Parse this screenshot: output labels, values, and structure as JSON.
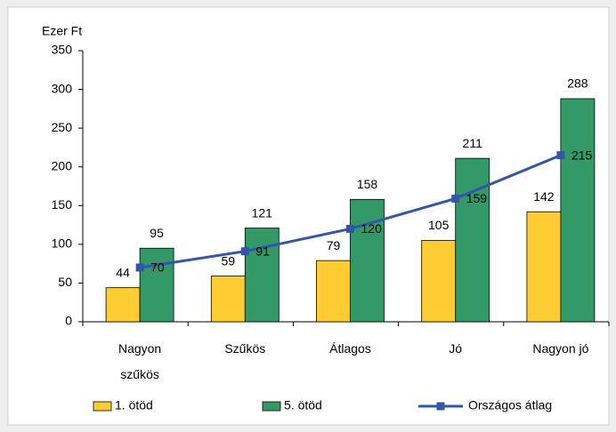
{
  "chart_data": {
    "type": "bar",
    "y_label": "Ezer Ft",
    "categories": [
      "Nagyon szűkös",
      "Szűkös",
      "Átlagos",
      "Jó",
      "Nagyon jó"
    ],
    "series": [
      {
        "name": "1. ötöd",
        "color": "#ffcc33",
        "values": [
          44,
          59,
          79,
          105,
          142
        ]
      },
      {
        "name": "5. ötöd",
        "color": "#339966",
        "values": [
          95,
          121,
          158,
          211,
          288
        ]
      },
      {
        "name": "Országos átlag",
        "color": "#3355aa",
        "type": "line",
        "values": [
          70,
          91,
          120,
          159,
          215
        ]
      }
    ],
    "ylim": [
      0,
      350
    ],
    "yticks": [
      0,
      50,
      100,
      150,
      200,
      250,
      300,
      350
    ],
    "grid": false,
    "data_labels": true,
    "legend": "bottom"
  }
}
